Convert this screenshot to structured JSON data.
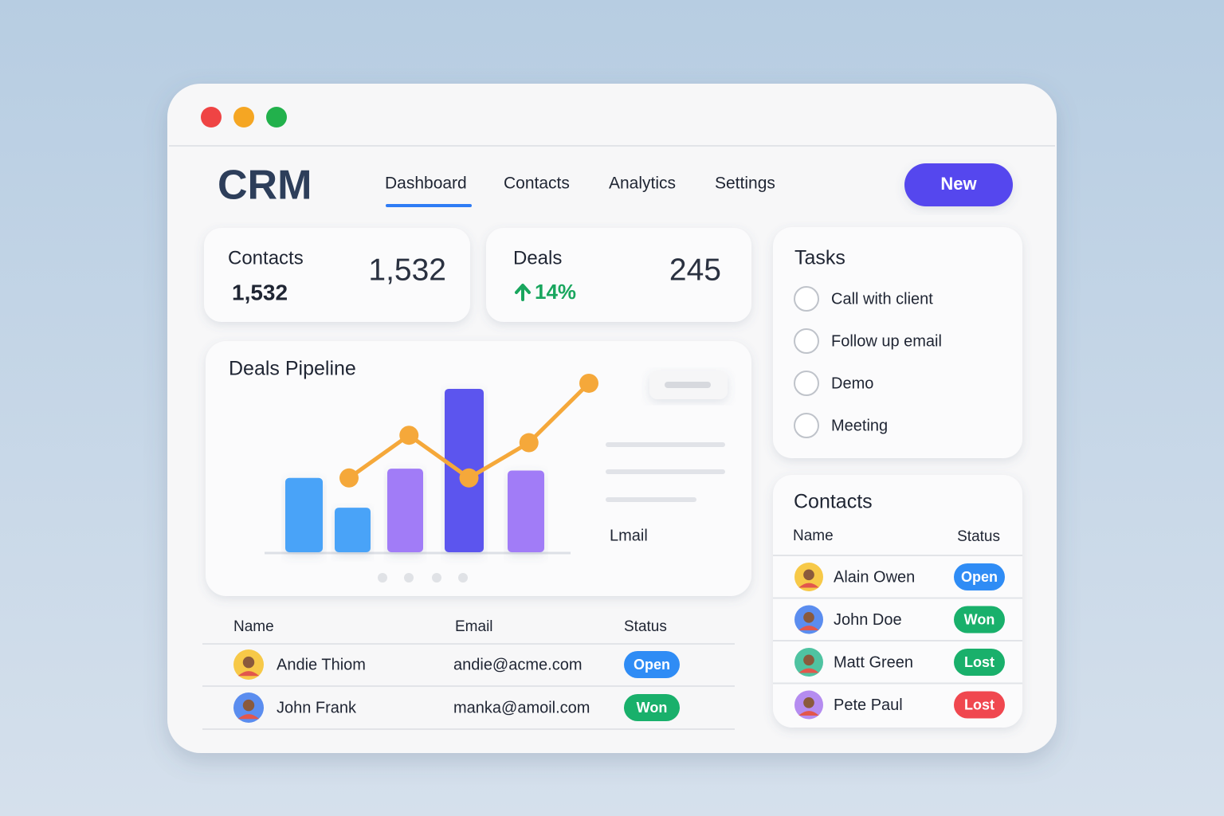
{
  "header": {
    "logo": "CRM",
    "nav": [
      "Dashboard",
      "Contacts",
      "Analytics",
      "Settings"
    ],
    "button": "New"
  },
  "stats": [
    {
      "label": "Contacts",
      "sub": "1,532",
      "value": "1,532"
    },
    {
      "label": "Deals",
      "sub": "14%",
      "value": "245"
    }
  ],
  "chart_data": {
    "type": "bar",
    "title": "Deals Pipeline",
    "values": [
      40,
      24,
      45,
      88,
      44
    ],
    "colors": [
      "#4aa3f8",
      "#4aa3f8",
      "#a17cf7",
      "#5b55ee",
      "#a17cf7"
    ],
    "line": {
      "color": "#f5a83a",
      "values": [
        40,
        63,
        40,
        59,
        91
      ]
    },
    "ylim": [
      0,
      100
    ],
    "legend_label": "Lmail"
  },
  "table": {
    "columns": [
      "Name",
      "Email",
      "Status"
    ],
    "rows": [
      {
        "name": "Andie Thiom",
        "email": "andie@acme.com",
        "status": "Open",
        "status_color": "#2f8cf5"
      },
      {
        "name": "John Frank",
        "email": "manka@amoil.com",
        "status": "Won",
        "status_color": "#19b06b"
      }
    ]
  },
  "tasks": {
    "title": "Tasks",
    "items": [
      "Call with client",
      "Follow up email",
      "Demo",
      "Meeting"
    ]
  },
  "contacts": {
    "title": "Contacts",
    "columns": [
      "Name",
      "Status"
    ],
    "rows": [
      {
        "name": "Alain Owen",
        "status": "Open",
        "status_color": "#2f8cf5"
      },
      {
        "name": "John Doe",
        "status": "Won",
        "status_color": "#19b06b"
      },
      {
        "name": "Matt Green",
        "status": "Lost",
        "status_color": "#19b06b"
      },
      {
        "name": "Pete Paul",
        "status": "Lost",
        "status_color": "#f0474f"
      }
    ]
  }
}
